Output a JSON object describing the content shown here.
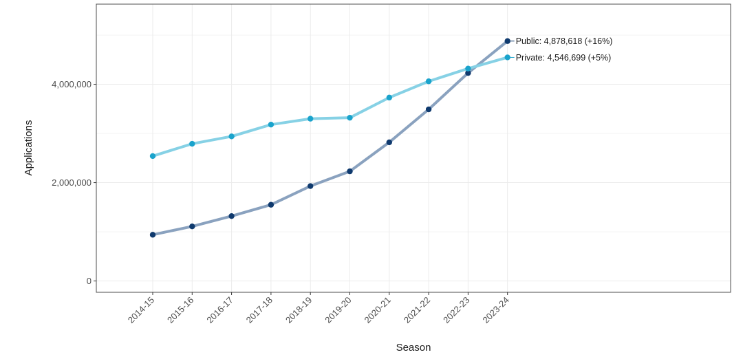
{
  "chart_data": {
    "type": "line",
    "xlabel": "Season",
    "ylabel": "Applications",
    "categories": [
      "2014-15",
      "2015-16",
      "2016-17",
      "2017-18",
      "2018-19",
      "2019-20",
      "2020-21",
      "2021-22",
      "2022-23",
      "2023-24"
    ],
    "ylim": [
      -230000,
      5630000
    ],
    "y_ticks": [
      0,
      2000000,
      4000000
    ],
    "y_tick_labels": [
      "0",
      "2,000,000",
      "4,000,000"
    ],
    "grid": true,
    "series": [
      {
        "name": "Public",
        "line_color": "#8aa2bf",
        "point_color": "#0f3a6e",
        "values": [
          940000,
          1110000,
          1320000,
          1550000,
          1930000,
          2230000,
          2820000,
          3490000,
          4230000,
          4878618
        ],
        "end_label": "Public: 4,878,618 (+16%)"
      },
      {
        "name": "Private",
        "line_color": "#86d1e5",
        "point_color": "#1aa3cc",
        "values": [
          2540000,
          2790000,
          2940000,
          3180000,
          3300000,
          3320000,
          3730000,
          4060000,
          4320000,
          4546699
        ],
        "end_label": "Private: 4,546,699 (+5%)"
      }
    ]
  }
}
